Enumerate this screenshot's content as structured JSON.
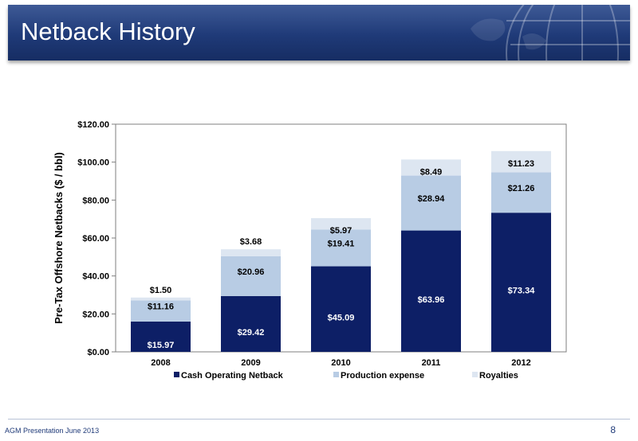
{
  "slide": {
    "title": "Netback History",
    "footer": "AGM Presentation June 2013",
    "page_number": "8"
  },
  "colors": {
    "banner": "#1f3a78",
    "cash_operating_netback": "#0d1f66",
    "production_expense": "#b8cce4",
    "royalties": "#dde6f1"
  },
  "chart_data": {
    "type": "bar",
    "stacked": true,
    "categories": [
      "2008",
      "2009",
      "2010",
      "2011",
      "2012"
    ],
    "series": [
      {
        "name": "Cash Operating Netback",
        "values": [
          15.97,
          29.42,
          45.09,
          63.96,
          73.34
        ],
        "labels": [
          "$15.97",
          "$29.42",
          "$45.09",
          "$63.96",
          "$73.34"
        ],
        "color": "#0d1f66"
      },
      {
        "name": "Production expense",
        "values": [
          11.16,
          20.96,
          19.41,
          28.94,
          21.26
        ],
        "labels": [
          "$11.16",
          "$20.96",
          "$19.41",
          "$28.94",
          "$21.26"
        ],
        "color": "#b8cce4"
      },
      {
        "name": "Royalties",
        "values": [
          1.5,
          3.68,
          5.97,
          8.49,
          11.23
        ],
        "labels": [
          "$1.50",
          "$3.68",
          "$5.97",
          "$8.49",
          "$11.23"
        ],
        "color": "#dde6f1"
      }
    ],
    "ylabel": "Pre-Tax Offshore Netbacks ($ / bbl)",
    "xlabel": "",
    "ylim": [
      0,
      120
    ],
    "yticks": [
      0,
      20,
      40,
      60,
      80,
      100,
      120
    ],
    "ytick_labels": [
      "$0.00",
      "$20.00",
      "$40.00",
      "$60.00",
      "$80.00",
      "$100.00",
      "$120.00"
    ],
    "legend_position": "bottom",
    "grid": false
  }
}
